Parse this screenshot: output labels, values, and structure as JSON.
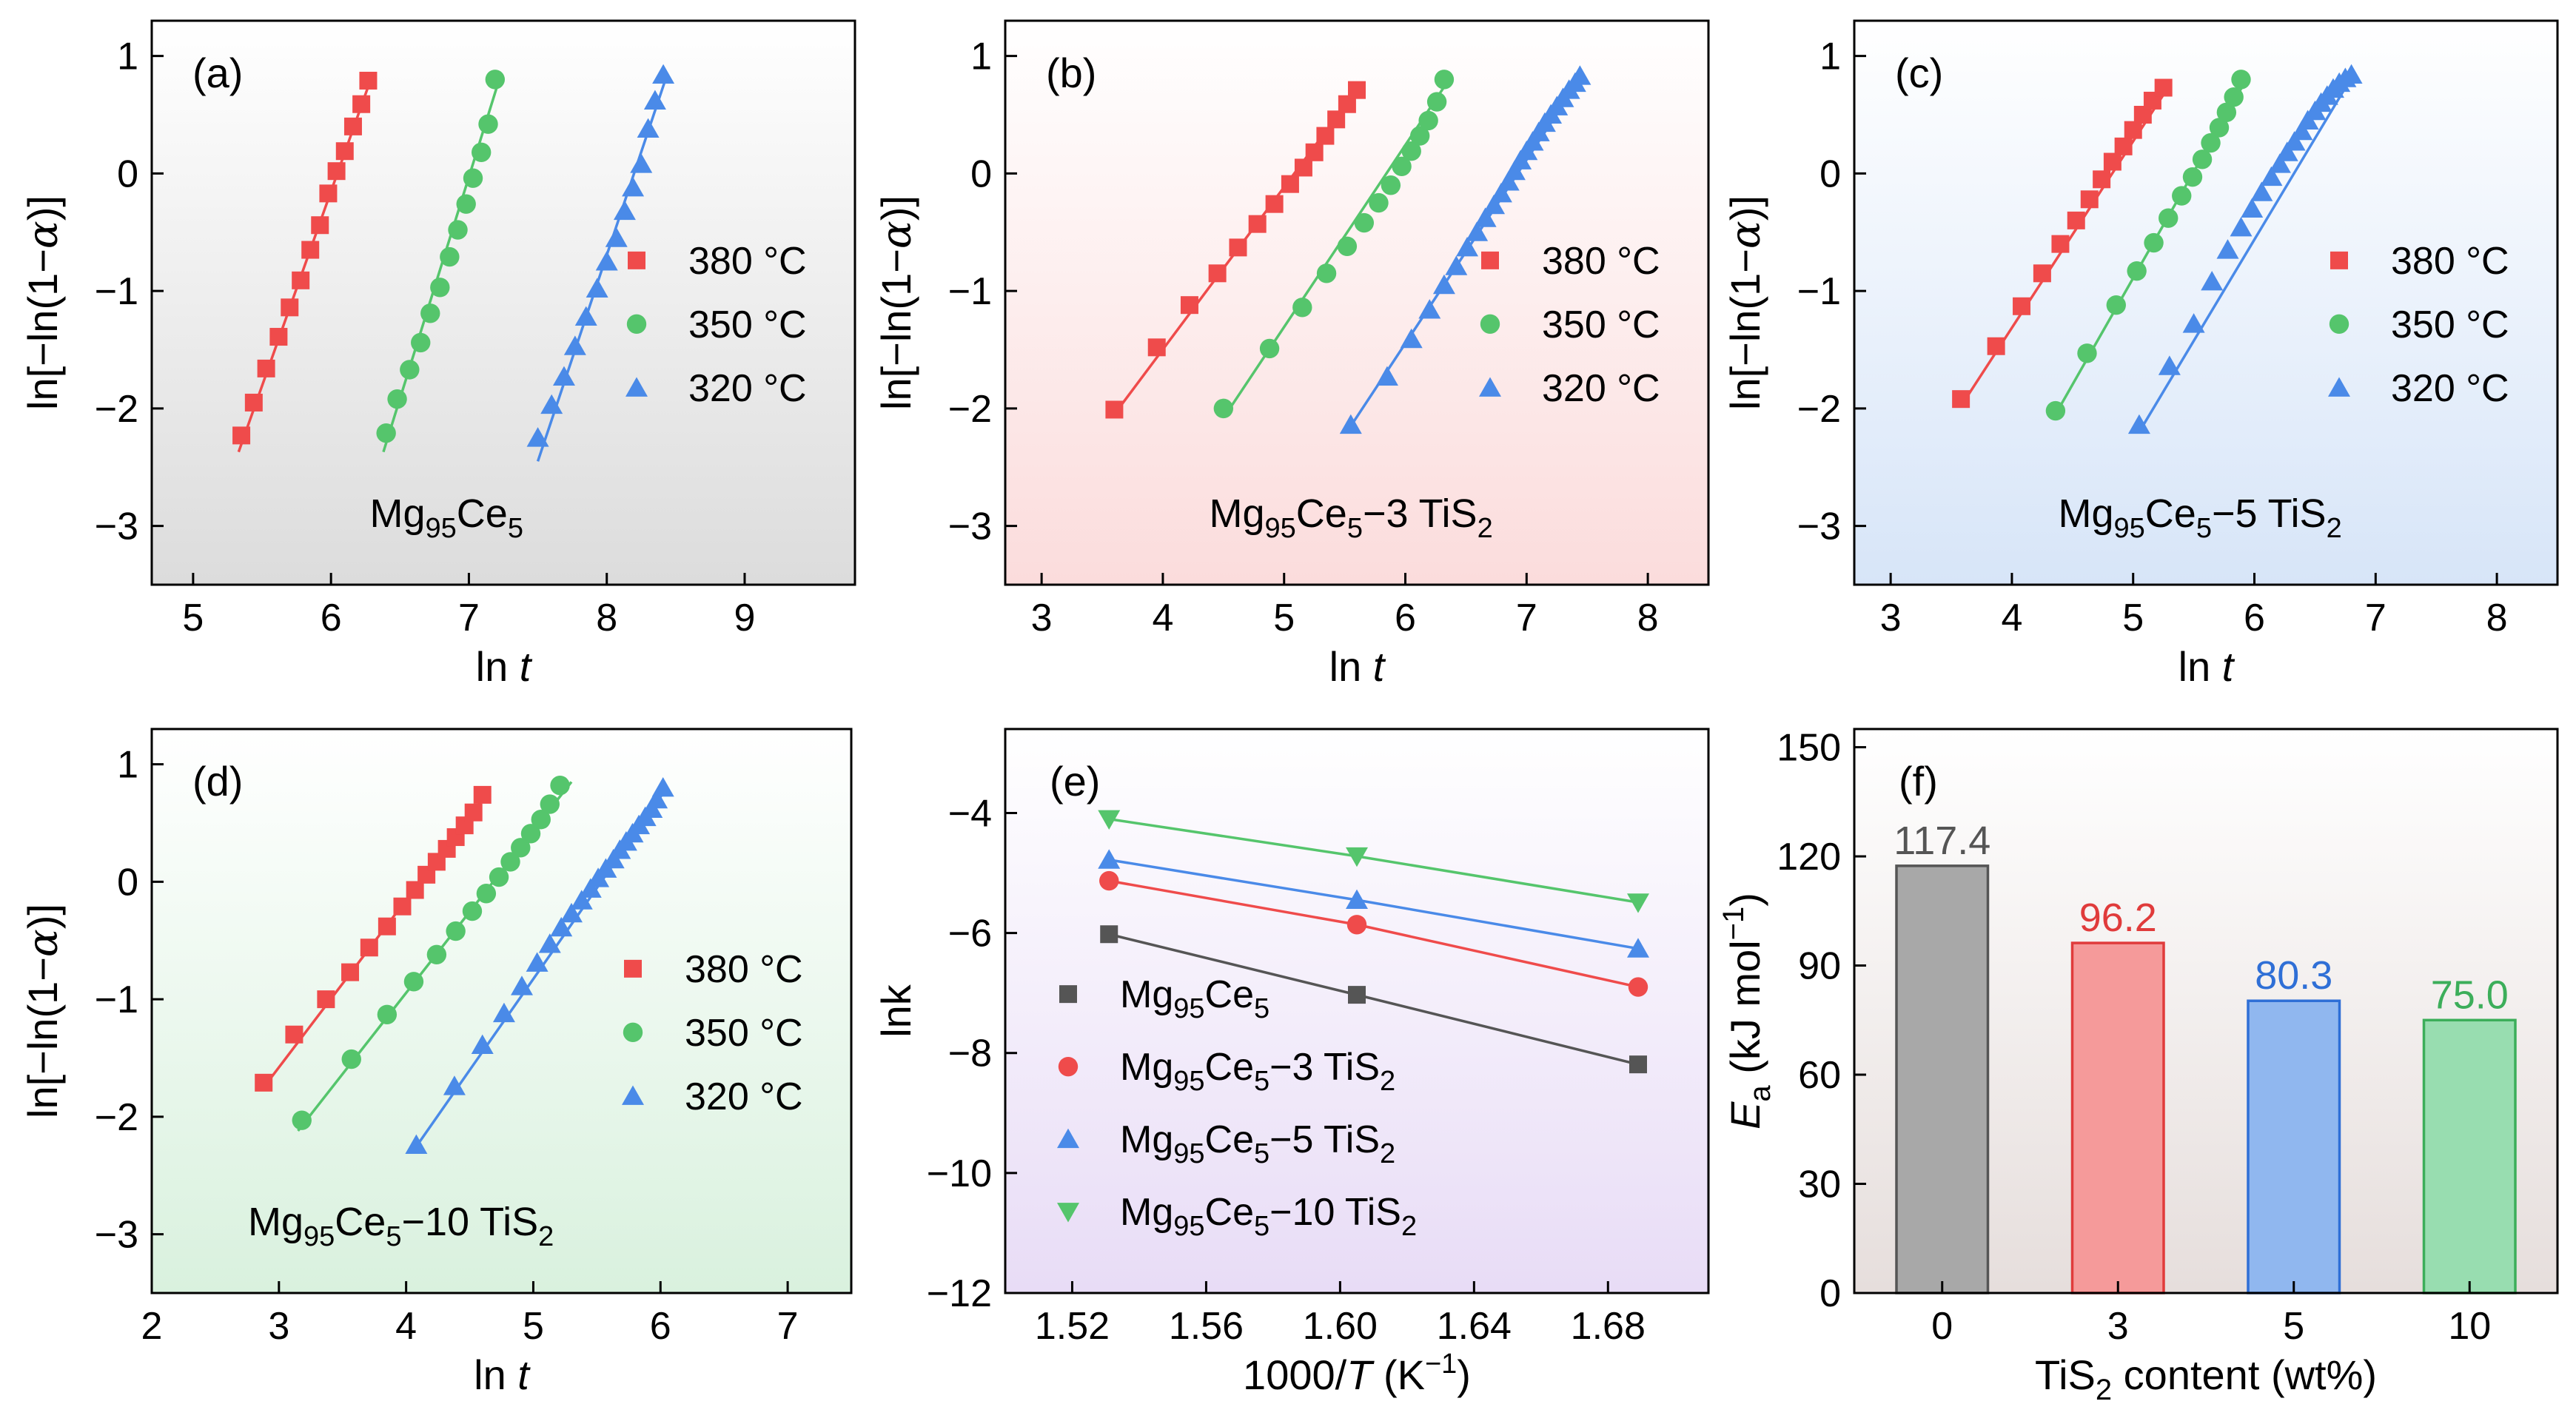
{
  "colors": {
    "red": "#ef4b4b",
    "green": "#55c56c",
    "blue": "#4a8ae8",
    "gray": "#555555",
    "bar_gray": "#a8a8a8",
    "bar_red": "#f59a9a",
    "bar_blue": "#90b7ef",
    "bar_green": "#98ddb0"
  },
  "chart_data": [
    {
      "id": "a",
      "type": "scatter",
      "label": "(a)",
      "sample": {
        "base": "Mg",
        "s1": "95",
        "mid": "Ce",
        "s2": "5",
        "suffix": "",
        "sub": ""
      },
      "xlabel": {
        "main": "ln ",
        "italic": "t"
      },
      "ylabel": "ln[−ln(1−α)]",
      "xlim": [
        4.7,
        9.8
      ],
      "ylim": [
        -3.5,
        1.3
      ],
      "xticks": [
        "5",
        "6",
        "7",
        "8",
        "9"
      ],
      "yticks": [
        "-3",
        "-2",
        "-1",
        "0",
        "1"
      ],
      "background": {
        "top": "#ffffff",
        "bottom": "#dcdcdc"
      },
      "legend": [
        "380 °C",
        "350 °C",
        "320 °C"
      ],
      "series": [
        {
          "name": "380 °C",
          "marker": "square",
          "color": "#ef4b4b",
          "line": [
            [
              5.33,
              -2.37
            ],
            [
              6.3,
              0.84
            ]
          ],
          "x": [
            5.35,
            5.44,
            5.53,
            5.62,
            5.7,
            5.78,
            5.85,
            5.92,
            5.98,
            6.04,
            6.1,
            6.16,
            6.22,
            6.27
          ],
          "y": [
            -2.23,
            -1.95,
            -1.66,
            -1.39,
            -1.14,
            -0.91,
            -0.65,
            -0.44,
            -0.17,
            0.02,
            0.19,
            0.4,
            0.59,
            0.79
          ]
        },
        {
          "name": "350 °C",
          "marker": "circle",
          "color": "#55c56c",
          "line": [
            [
              6.38,
              -2.37
            ],
            [
              7.22,
              0.8
            ]
          ],
          "x": [
            6.4,
            6.48,
            6.57,
            6.65,
            6.72,
            6.79,
            6.86,
            6.92,
            6.98,
            7.03,
            7.09,
            7.14,
            7.19
          ],
          "y": [
            -2.21,
            -1.92,
            -1.67,
            -1.44,
            -1.19,
            -0.97,
            -0.71,
            -0.48,
            -0.26,
            -0.04,
            0.18,
            0.42,
            0.8
          ]
        },
        {
          "name": "320 °C",
          "marker": "triangle",
          "color": "#4a8ae8",
          "line": [
            [
              7.5,
              -2.45
            ],
            [
              8.42,
              0.78
            ]
          ],
          "x": [
            7.5,
            7.6,
            7.69,
            7.77,
            7.85,
            7.93,
            8.0,
            8.07,
            8.13,
            8.19,
            8.25,
            8.3,
            8.35,
            8.41
          ],
          "y": [
            -2.25,
            -1.97,
            -1.73,
            -1.47,
            -1.22,
            -0.98,
            -0.75,
            -0.55,
            -0.32,
            -0.12,
            0.08,
            0.38,
            0.62,
            0.84
          ]
        }
      ]
    },
    {
      "id": "b",
      "type": "scatter",
      "label": "(b)",
      "sample": {
        "base": "Mg",
        "s1": "95",
        "mid": "Ce",
        "s2": "5",
        "suffix": "−3 TiS",
        "sub": "2"
      },
      "xlabel": {
        "main": "ln ",
        "italic": "t"
      },
      "ylabel": "ln[−ln(1−α)]",
      "xlim": [
        2.7,
        8.5
      ],
      "ylim": [
        -3.5,
        1.3
      ],
      "xticks": [
        "3",
        "4",
        "5",
        "6",
        "7",
        "8"
      ],
      "yticks": [
        "-3",
        "-2",
        "-1",
        "0",
        "1"
      ],
      "background": {
        "top": "#ffffff",
        "bottom": "#fbdcdc"
      },
      "legend": [
        "380 °C",
        "350 °C",
        "320 °C"
      ],
      "series": [
        {
          "name": "380 °C",
          "marker": "square",
          "color": "#ef4b4b",
          "line": [
            [
              3.6,
              -2.05
            ],
            [
              5.62,
              0.74
            ]
          ],
          "x": [
            3.6,
            3.95,
            4.22,
            4.45,
            4.62,
            4.78,
            4.92,
            5.05,
            5.16,
            5.25,
            5.34,
            5.43,
            5.52,
            5.6
          ],
          "y": [
            -2.01,
            -1.48,
            -1.12,
            -0.85,
            -0.63,
            -0.43,
            -0.26,
            -0.09,
            0.05,
            0.18,
            0.32,
            0.46,
            0.59,
            0.71
          ]
        },
        {
          "name": "350 °C",
          "marker": "circle",
          "color": "#55c56c",
          "line": [
            [
              4.52,
              -2.05
            ],
            [
              6.38,
              0.83
            ]
          ],
          "x": [
            4.5,
            4.88,
            5.15,
            5.35,
            5.52,
            5.66,
            5.78,
            5.88,
            5.97,
            6.05,
            6.12,
            6.19,
            6.26,
            6.32
          ],
          "y": [
            -2.0,
            -1.49,
            -1.14,
            -0.85,
            -0.62,
            -0.42,
            -0.25,
            -0.1,
            0.06,
            0.19,
            0.32,
            0.45,
            0.61,
            0.8
          ]
        },
        {
          "name": "320 °C",
          "marker": "triangle",
          "color": "#4a8ae8",
          "line": [
            [
              5.55,
              -2.15
            ],
            [
              7.45,
              0.82
            ]
          ],
          "x": [
            5.55,
            5.85,
            6.05,
            6.2,
            6.32,
            6.42,
            6.51,
            6.59,
            6.66,
            6.73,
            6.79,
            6.85,
            6.9,
            6.95,
            7.0,
            7.05,
            7.1,
            7.15,
            7.2,
            7.25,
            7.3,
            7.35,
            7.4,
            7.44
          ],
          "y": [
            -2.14,
            -1.73,
            -1.41,
            -1.16,
            -0.95,
            -0.79,
            -0.63,
            -0.5,
            -0.38,
            -0.27,
            -0.17,
            -0.07,
            0.02,
            0.11,
            0.19,
            0.27,
            0.35,
            0.43,
            0.5,
            0.57,
            0.64,
            0.71,
            0.77,
            0.83
          ]
        }
      ]
    },
    {
      "id": "c",
      "type": "scatter",
      "label": "(c)",
      "sample": {
        "base": "Mg",
        "s1": "95",
        "mid": "Ce",
        "s2": "5",
        "suffix": "−5 TiS",
        "sub": "2"
      },
      "xlabel": {
        "main": "ln ",
        "italic": "t"
      },
      "ylabel": "ln[−ln(1−α)]",
      "xlim": [
        2.7,
        8.5
      ],
      "ylim": [
        -3.5,
        1.3
      ],
      "xticks": [
        "3",
        "4",
        "5",
        "6",
        "7",
        "8"
      ],
      "yticks": [
        "-3",
        "-2",
        "-1",
        "0",
        "1"
      ],
      "background": {
        "top": "#ffffff",
        "bottom": "#d7e5f8"
      },
      "legend": [
        "380 °C",
        "350 °C",
        "320 °C"
      ],
      "series": [
        {
          "name": "380 °C",
          "marker": "square",
          "color": "#ef4b4b",
          "line": [
            [
              3.58,
              -1.98
            ],
            [
              5.3,
              0.75
            ]
          ],
          "x": [
            3.58,
            3.87,
            4.08,
            4.25,
            4.4,
            4.53,
            4.64,
            4.74,
            4.83,
            4.92,
            5.0,
            5.08,
            5.16,
            5.25
          ],
          "y": [
            -1.92,
            -1.47,
            -1.13,
            -0.85,
            -0.6,
            -0.4,
            -0.22,
            -0.05,
            0.1,
            0.23,
            0.37,
            0.5,
            0.62,
            0.73
          ]
        },
        {
          "name": "350 °C",
          "marker": "circle",
          "color": "#55c56c",
          "line": [
            [
              4.36,
              -2.05
            ],
            [
              5.95,
              0.83
            ]
          ],
          "x": [
            4.36,
            4.62,
            4.86,
            5.03,
            5.17,
            5.29,
            5.4,
            5.49,
            5.57,
            5.64,
            5.71,
            5.77,
            5.83,
            5.89
          ],
          "y": [
            -2.02,
            -1.53,
            -1.12,
            -0.83,
            -0.59,
            -0.38,
            -0.19,
            -0.03,
            0.12,
            0.26,
            0.39,
            0.52,
            0.65,
            0.8
          ]
        },
        {
          "name": "320 °C",
          "marker": "triangle",
          "color": "#4a8ae8",
          "line": [
            [
              5.05,
              -2.2
            ],
            [
              6.82,
              0.85
            ]
          ],
          "x": [
            5.05,
            5.3,
            5.5,
            5.65,
            5.78,
            5.89,
            5.98,
            6.06,
            6.14,
            6.21,
            6.27,
            6.33,
            6.39,
            6.44,
            6.5,
            6.55,
            6.6,
            6.65,
            6.7,
            6.75,
            6.8
          ],
          "y": [
            -2.14,
            -1.64,
            -1.28,
            -0.92,
            -0.65,
            -0.46,
            -0.3,
            -0.16,
            -0.03,
            0.08,
            0.18,
            0.27,
            0.36,
            0.45,
            0.53,
            0.6,
            0.66,
            0.72,
            0.77,
            0.81,
            0.84
          ]
        }
      ]
    },
    {
      "id": "d",
      "type": "scatter",
      "label": "(d)",
      "sample": {
        "base": "Mg",
        "s1": "95",
        "mid": "Ce",
        "s2": "5",
        "suffix": "−10 TiS",
        "sub": "2"
      },
      "xlabel": {
        "main": "ln ",
        "italic": "t"
      },
      "ylabel": "ln[−ln(1−α)]",
      "xlim": [
        2.0,
        7.5
      ],
      "ylim": [
        -3.5,
        1.3
      ],
      "xticks": [
        "2",
        "3",
        "4",
        "5",
        "6",
        "7"
      ],
      "yticks": [
        "-3",
        "-2",
        "-1",
        "0",
        "1"
      ],
      "background": {
        "top": "#ffffff",
        "bottom": "#d9f1de"
      },
      "legend": [
        "380 °C",
        "350 °C",
        "320 °C"
      ],
      "series": [
        {
          "name": "380 °C",
          "marker": "square",
          "color": "#ef4b4b",
          "line": [
            [
              2.88,
              -1.75
            ],
            [
              4.65,
              0.77
            ]
          ],
          "x": [
            2.88,
            3.12,
            3.37,
            3.56,
            3.71,
            3.85,
            3.97,
            4.07,
            4.16,
            4.24,
            4.32,
            4.39,
            4.46,
            4.53,
            4.6
          ],
          "y": [
            -1.71,
            -1.3,
            -1.0,
            -0.77,
            -0.56,
            -0.38,
            -0.21,
            -0.07,
            0.06,
            0.17,
            0.28,
            0.38,
            0.48,
            0.59,
            0.74
          ]
        },
        {
          "name": "350 °C",
          "marker": "circle",
          "color": "#55c56c",
          "line": [
            [
              3.15,
              -2.12
            ],
            [
              5.3,
              0.85
            ]
          ],
          "x": [
            3.18,
            3.57,
            3.85,
            4.06,
            4.24,
            4.39,
            4.52,
            4.63,
            4.73,
            4.82,
            4.9,
            4.98,
            5.06,
            5.13,
            5.21
          ],
          "y": [
            -2.03,
            -1.51,
            -1.13,
            -0.85,
            -0.62,
            -0.42,
            -0.25,
            -0.1,
            0.04,
            0.17,
            0.29,
            0.41,
            0.53,
            0.66,
            0.82
          ]
        },
        {
          "name": "320 °C",
          "marker": "triangle",
          "color": "#4a8ae8",
          "line": [
            [
              4.05,
              -2.3
            ],
            [
              6.05,
              0.8
            ]
          ],
          "x": [
            4.08,
            4.38,
            4.6,
            4.77,
            4.91,
            5.03,
            5.13,
            5.22,
            5.3,
            5.38,
            5.45,
            5.51,
            5.57,
            5.63,
            5.68,
            5.73,
            5.78,
            5.83,
            5.88,
            5.93,
            5.97,
            6.02
          ],
          "y": [
            -2.24,
            -1.74,
            -1.39,
            -1.12,
            -0.89,
            -0.69,
            -0.53,
            -0.39,
            -0.27,
            -0.16,
            -0.06,
            0.03,
            0.11,
            0.19,
            0.27,
            0.34,
            0.41,
            0.48,
            0.55,
            0.62,
            0.7,
            0.8
          ]
        }
      ]
    },
    {
      "id": "e",
      "type": "line",
      "label": "(e)",
      "xlabel": {
        "main": "1000/",
        "italic": "T",
        "after": " (K",
        "sup": "−1",
        "close": ")"
      },
      "ylabel": "lnk",
      "xlim": [
        1.5,
        1.71
      ],
      "ylim": [
        -12,
        -2.6
      ],
      "xticks": [
        "1.52",
        "1.56",
        "1.60",
        "1.64",
        "1.68"
      ],
      "xtick_values": [
        1.52,
        1.56,
        1.6,
        1.64,
        1.68
      ],
      "yticks": [
        "-12",
        "-10",
        "-8",
        "-6",
        "-4"
      ],
      "ytick_values": [
        -12,
        -10,
        -8,
        -6,
        -4
      ],
      "background": {
        "top": "#ffffff",
        "bottom": "#e8dcf6"
      },
      "x": [
        1.531,
        1.605,
        1.689
      ],
      "series": [
        {
          "name": "Mg95Ce5",
          "marker": "square",
          "color": "#555555",
          "values": [
            -6.02,
            -7.03,
            -8.19
          ],
          "legend": {
            "base": "Mg",
            "s1": "95",
            "mid": "Ce",
            "s2": "5",
            "suffix": "",
            "sub": ""
          }
        },
        {
          "name": "Mg95Ce5−3 TiS2",
          "marker": "circle",
          "color": "#ef4b4b",
          "values": [
            -5.13,
            -5.86,
            -6.9
          ],
          "legend": {
            "base": "Mg",
            "s1": "95",
            "mid": "Ce",
            "s2": "5",
            "suffix": "−3 TiS",
            "sub": "2"
          }
        },
        {
          "name": "Mg95Ce5−5 TiS2",
          "marker": "triangle",
          "color": "#4a8ae8",
          "values": [
            -4.78,
            -5.45,
            -6.26
          ],
          "legend": {
            "base": "Mg",
            "s1": "95",
            "mid": "Ce",
            "s2": "5",
            "suffix": "−5 TiS",
            "sub": "2"
          }
        },
        {
          "name": "Mg95Ce5−10 TiS2",
          "marker": "triangle-down",
          "color": "#55c56c",
          "values": [
            -4.1,
            -4.72,
            -5.49
          ],
          "legend": {
            "base": "Mg",
            "s1": "95",
            "mid": "Ce",
            "s2": "5",
            "suffix": "−10 TiS",
            "sub": "2"
          }
        }
      ]
    },
    {
      "id": "f",
      "type": "bar",
      "label": "(f)",
      "categories": [
        "0",
        "3",
        "5",
        "10"
      ],
      "values": [
        117.4,
        96.2,
        80.3,
        75.0
      ],
      "value_labels": [
        "117.4",
        "96.2",
        "80.3",
        "75.0"
      ],
      "bar_colors": [
        "#a8a8a8",
        "#f59a9a",
        "#90b7ef",
        "#98ddb0"
      ],
      "edge_colors": [
        "#555555",
        "#e03b3b",
        "#2f6fd6",
        "#3cae5a"
      ],
      "label_colors": [
        "#555555",
        "#e03b3b",
        "#2f6fd6",
        "#3cae5a"
      ],
      "xlabel": {
        "pre": "TiS",
        "sub": "2",
        "post": " content (wt%)"
      },
      "ylabel": {
        "italic": "E",
        "sub": "a",
        "mid": " (kJ mol",
        "sup": "−1",
        "close": ")"
      },
      "ylim": [
        0,
        155
      ],
      "yticks": [
        "0",
        "30",
        "60",
        "90",
        "120",
        "150"
      ],
      "ytick_values": [
        0,
        30,
        60,
        90,
        120,
        150
      ],
      "background": {
        "top": "#ffffff",
        "bottom": "#e6dedc"
      }
    }
  ]
}
